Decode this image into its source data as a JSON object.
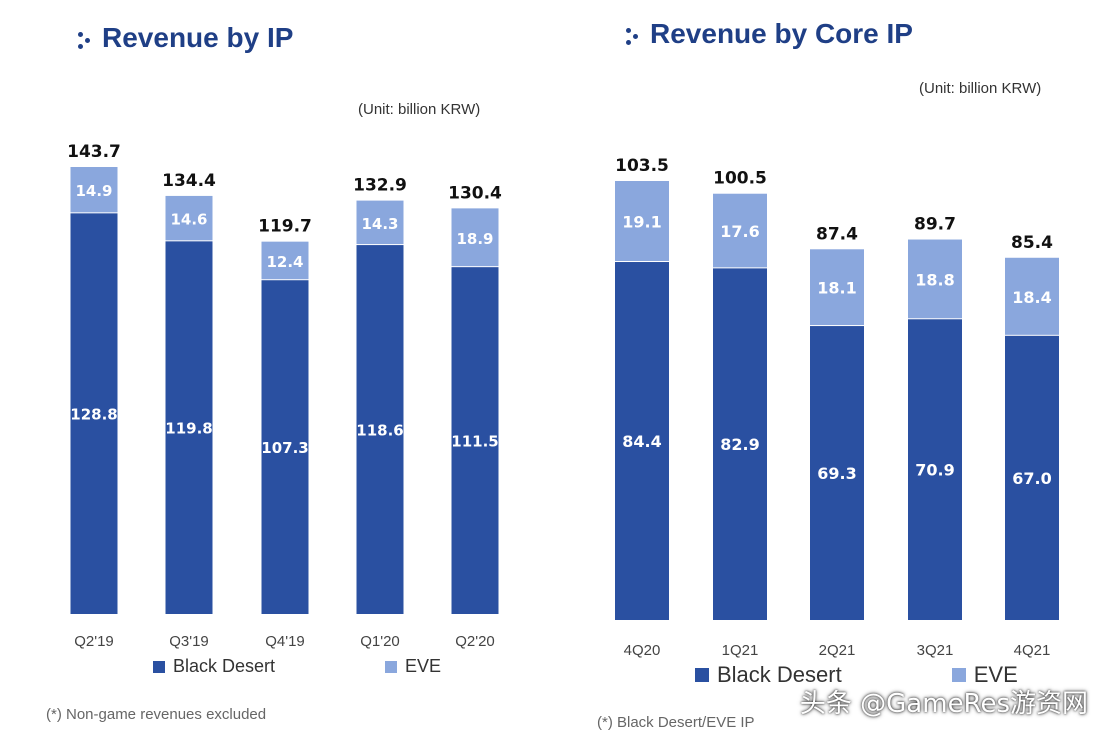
{
  "colors": {
    "black_desert": "#2a50a1",
    "eve": "#8aa7dd",
    "title": "#1f3f86"
  },
  "chart_data": [
    {
      "type": "bar",
      "stacked": true,
      "title": "Revenue by IP",
      "unit": "(Unit: billion KRW)",
      "categories": [
        "Q2'19",
        "Q3'19",
        "Q4'19",
        "Q1'20",
        "Q2'20"
      ],
      "series": [
        {
          "name": "Black Desert",
          "values": [
            128.8,
            119.8,
            107.3,
            118.6,
            111.5
          ]
        },
        {
          "name": "EVE",
          "values": [
            14.9,
            14.6,
            12.4,
            14.3,
            18.9
          ]
        }
      ],
      "totals": [
        143.7,
        134.4,
        119.7,
        132.9,
        130.4
      ],
      "ylim": [
        0,
        143.7
      ],
      "legend": "bottom",
      "footnote": "(*) Non-game revenues excluded"
    },
    {
      "type": "bar",
      "stacked": true,
      "title": "Revenue by Core IP",
      "unit": "(Unit: billion KRW)",
      "categories": [
        "4Q20",
        "1Q21",
        "2Q21",
        "3Q21",
        "4Q21"
      ],
      "series": [
        {
          "name": "Black Desert",
          "values": [
            84.4,
            82.9,
            69.3,
            70.9,
            67.0
          ]
        },
        {
          "name": "EVE",
          "values": [
            19.1,
            17.6,
            18.1,
            18.8,
            18.4
          ]
        }
      ],
      "totals": [
        103.5,
        100.5,
        87.4,
        89.7,
        85.4
      ],
      "ylim": [
        0,
        103.5
      ],
      "legend": "bottom",
      "footnote": "(*) Black Desert/EVE IP"
    }
  ],
  "watermark": "头条 @GameRes游资网"
}
